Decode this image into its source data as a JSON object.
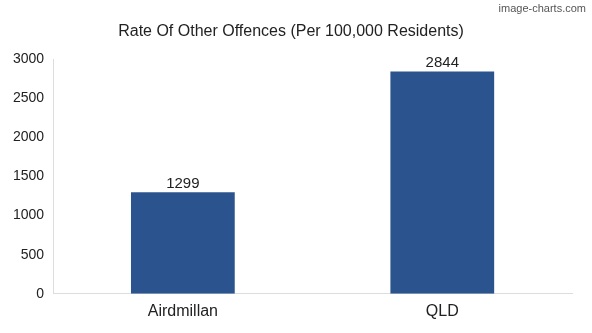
{
  "chart_data": {
    "type": "bar",
    "title": "Rate Of Other Offences (Per 100,000 Residents)",
    "annotations": [
      "image-charts.com"
    ],
    "categories": [
      "Airdmillan",
      "QLD"
    ],
    "values": [
      1299,
      2844
    ],
    "color": "#2b548e",
    "ylim": [
      0,
      3000
    ],
    "yticks": [
      0,
      500,
      1000,
      1500,
      2000,
      2500,
      3000
    ],
    "grid": false,
    "data_labels": true
  }
}
